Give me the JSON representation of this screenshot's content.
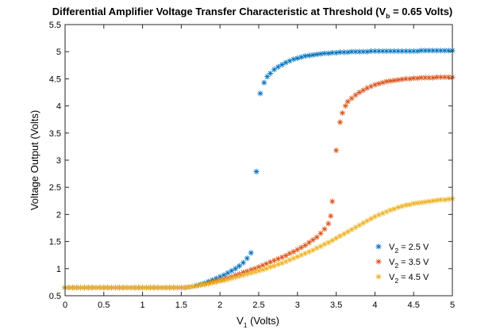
{
  "chart_data": {
    "type": "scatter",
    "title": {
      "main": "Differential Amplifier Voltage Transfer Characteristic at Threshold (V",
      "sub": "b",
      "tail": " = 0.65 Volts)"
    },
    "xlabel": {
      "main": "V",
      "sub": "1",
      "tail": " (Volts)"
    },
    "ylabel": "Voltage Output (Volts)",
    "xlim": [
      0,
      5
    ],
    "ylim": [
      0.5,
      5.5
    ],
    "xticks": [
      "0",
      "0.5",
      "1",
      "1.5",
      "2",
      "2.5",
      "3",
      "3.5",
      "4",
      "4.5",
      "5"
    ],
    "yticks": [
      "0.5",
      "1",
      "1.5",
      "2",
      "2.5",
      "3",
      "3.5",
      "4",
      "4.5",
      "5",
      "5.5"
    ],
    "marker": "*",
    "legend_position": "lower-right",
    "series": [
      {
        "name": {
          "main": "V",
          "sub": "2",
          "tail": " = 2.5 V"
        },
        "color": "#0072BD",
        "points": [
          [
            0.0,
            0.65
          ],
          [
            0.05,
            0.65
          ],
          [
            0.1,
            0.65
          ],
          [
            0.15,
            0.65
          ],
          [
            0.2,
            0.65
          ],
          [
            0.25,
            0.65
          ],
          [
            0.3,
            0.65
          ],
          [
            0.35,
            0.65
          ],
          [
            0.4,
            0.65
          ],
          [
            0.45,
            0.65
          ],
          [
            0.5,
            0.65
          ],
          [
            0.55,
            0.65
          ],
          [
            0.6,
            0.65
          ],
          [
            0.65,
            0.65
          ],
          [
            0.7,
            0.65
          ],
          [
            0.75,
            0.65
          ],
          [
            0.8,
            0.65
          ],
          [
            0.85,
            0.65
          ],
          [
            0.9,
            0.65
          ],
          [
            0.95,
            0.65
          ],
          [
            1.0,
            0.65
          ],
          [
            1.05,
            0.65
          ],
          [
            1.1,
            0.65
          ],
          [
            1.15,
            0.65
          ],
          [
            1.2,
            0.65
          ],
          [
            1.25,
            0.65
          ],
          [
            1.3,
            0.65
          ],
          [
            1.35,
            0.65
          ],
          [
            1.4,
            0.65
          ],
          [
            1.45,
            0.65
          ],
          [
            1.5,
            0.65
          ],
          [
            1.55,
            0.65
          ],
          [
            1.6,
            0.66
          ],
          [
            1.65,
            0.67
          ],
          [
            1.7,
            0.69
          ],
          [
            1.75,
            0.71
          ],
          [
            1.8,
            0.73
          ],
          [
            1.85,
            0.76
          ],
          [
            1.9,
            0.79
          ],
          [
            1.95,
            0.82
          ],
          [
            2.0,
            0.85
          ],
          [
            2.05,
            0.88
          ],
          [
            2.1,
            0.92
          ],
          [
            2.15,
            0.96
          ],
          [
            2.2,
            1.0
          ],
          [
            2.25,
            1.05
          ],
          [
            2.3,
            1.11
          ],
          [
            2.35,
            1.19
          ],
          [
            2.4,
            1.29
          ],
          [
            2.47,
            2.79
          ],
          [
            2.52,
            4.23
          ],
          [
            2.57,
            4.43
          ],
          [
            2.61,
            4.54
          ],
          [
            2.65,
            4.6
          ],
          [
            2.7,
            4.67
          ],
          [
            2.75,
            4.72
          ],
          [
            2.8,
            4.76
          ],
          [
            2.85,
            4.8
          ],
          [
            2.9,
            4.83
          ],
          [
            2.95,
            4.86
          ],
          [
            3.0,
            4.88
          ],
          [
            3.05,
            4.9
          ],
          [
            3.1,
            4.92
          ],
          [
            3.15,
            4.93
          ],
          [
            3.2,
            4.94
          ],
          [
            3.25,
            4.95
          ],
          [
            3.3,
            4.96
          ],
          [
            3.35,
            4.97
          ],
          [
            3.4,
            4.97
          ],
          [
            3.45,
            4.98
          ],
          [
            3.5,
            4.98
          ],
          [
            3.55,
            4.99
          ],
          [
            3.6,
            4.99
          ],
          [
            3.65,
            4.99
          ],
          [
            3.7,
            5.0
          ],
          [
            3.75,
            5.0
          ],
          [
            3.8,
            5.0
          ],
          [
            3.85,
            5.0
          ],
          [
            3.9,
            5.0
          ],
          [
            3.95,
            5.01
          ],
          [
            4.0,
            5.01
          ],
          [
            4.05,
            5.01
          ],
          [
            4.1,
            5.01
          ],
          [
            4.15,
            5.01
          ],
          [
            4.2,
            5.01
          ],
          [
            4.25,
            5.01
          ],
          [
            4.3,
            5.01
          ],
          [
            4.35,
            5.01
          ],
          [
            4.4,
            5.01
          ],
          [
            4.45,
            5.01
          ],
          [
            4.5,
            5.01
          ],
          [
            4.55,
            5.01
          ],
          [
            4.6,
            5.02
          ],
          [
            4.65,
            5.02
          ],
          [
            4.7,
            5.02
          ],
          [
            4.75,
            5.02
          ],
          [
            4.8,
            5.02
          ],
          [
            4.85,
            5.02
          ],
          [
            4.9,
            5.02
          ],
          [
            4.95,
            5.02
          ],
          [
            5.0,
            5.02
          ]
        ]
      },
      {
        "name": {
          "main": "V",
          "sub": "2",
          "tail": " = 3.5 V"
        },
        "color": "#D95319",
        "points": [
          [
            0.0,
            0.65
          ],
          [
            0.05,
            0.65
          ],
          [
            0.1,
            0.65
          ],
          [
            0.15,
            0.65
          ],
          [
            0.2,
            0.65
          ],
          [
            0.25,
            0.65
          ],
          [
            0.3,
            0.65
          ],
          [
            0.35,
            0.65
          ],
          [
            0.4,
            0.65
          ],
          [
            0.45,
            0.65
          ],
          [
            0.5,
            0.65
          ],
          [
            0.55,
            0.65
          ],
          [
            0.6,
            0.65
          ],
          [
            0.65,
            0.65
          ],
          [
            0.7,
            0.65
          ],
          [
            0.75,
            0.65
          ],
          [
            0.8,
            0.65
          ],
          [
            0.85,
            0.65
          ],
          [
            0.9,
            0.65
          ],
          [
            0.95,
            0.65
          ],
          [
            1.0,
            0.65
          ],
          [
            1.05,
            0.65
          ],
          [
            1.1,
            0.65
          ],
          [
            1.15,
            0.65
          ],
          [
            1.2,
            0.65
          ],
          [
            1.25,
            0.65
          ],
          [
            1.3,
            0.65
          ],
          [
            1.35,
            0.65
          ],
          [
            1.4,
            0.65
          ],
          [
            1.45,
            0.65
          ],
          [
            1.5,
            0.65
          ],
          [
            1.55,
            0.65
          ],
          [
            1.6,
            0.66
          ],
          [
            1.65,
            0.67
          ],
          [
            1.7,
            0.68
          ],
          [
            1.75,
            0.7
          ],
          [
            1.8,
            0.71
          ],
          [
            1.85,
            0.73
          ],
          [
            1.9,
            0.75
          ],
          [
            1.95,
            0.77
          ],
          [
            2.0,
            0.79
          ],
          [
            2.05,
            0.81
          ],
          [
            2.1,
            0.83
          ],
          [
            2.15,
            0.85
          ],
          [
            2.2,
            0.88
          ],
          [
            2.25,
            0.9
          ],
          [
            2.3,
            0.93
          ],
          [
            2.35,
            0.95
          ],
          [
            2.4,
            0.98
          ],
          [
            2.45,
            1.0
          ],
          [
            2.5,
            1.03
          ],
          [
            2.55,
            1.06
          ],
          [
            2.6,
            1.09
          ],
          [
            2.65,
            1.12
          ],
          [
            2.7,
            1.15
          ],
          [
            2.75,
            1.18
          ],
          [
            2.8,
            1.21
          ],
          [
            2.85,
            1.24
          ],
          [
            2.9,
            1.28
          ],
          [
            2.95,
            1.31
          ],
          [
            3.0,
            1.35
          ],
          [
            3.05,
            1.39
          ],
          [
            3.1,
            1.43
          ],
          [
            3.15,
            1.48
          ],
          [
            3.2,
            1.53
          ],
          [
            3.25,
            1.58
          ],
          [
            3.3,
            1.65
          ],
          [
            3.35,
            1.73
          ],
          [
            3.4,
            1.83
          ],
          [
            3.43,
            1.97
          ],
          [
            3.45,
            2.24
          ],
          [
            3.5,
            3.18
          ],
          [
            3.55,
            3.7
          ],
          [
            3.58,
            3.87
          ],
          [
            3.62,
            4.0
          ],
          [
            3.65,
            4.08
          ],
          [
            3.7,
            4.14
          ],
          [
            3.75,
            4.2
          ],
          [
            3.8,
            4.25
          ],
          [
            3.85,
            4.29
          ],
          [
            3.9,
            4.33
          ],
          [
            3.95,
            4.36
          ],
          [
            4.0,
            4.39
          ],
          [
            4.05,
            4.41
          ],
          [
            4.1,
            4.43
          ],
          [
            4.15,
            4.45
          ],
          [
            4.2,
            4.46
          ],
          [
            4.25,
            4.47
          ],
          [
            4.3,
            4.48
          ],
          [
            4.35,
            4.49
          ],
          [
            4.4,
            4.5
          ],
          [
            4.45,
            4.5
          ],
          [
            4.5,
            4.51
          ],
          [
            4.55,
            4.51
          ],
          [
            4.6,
            4.52
          ],
          [
            4.65,
            4.52
          ],
          [
            4.7,
            4.52
          ],
          [
            4.75,
            4.52
          ],
          [
            4.8,
            4.53
          ],
          [
            4.85,
            4.53
          ],
          [
            4.9,
            4.53
          ],
          [
            4.95,
            4.53
          ],
          [
            5.0,
            4.53
          ]
        ]
      },
      {
        "name": {
          "main": "V",
          "sub": "2",
          "tail": " = 4.5 V"
        },
        "color": "#EDB120",
        "points": [
          [
            0.0,
            0.65
          ],
          [
            0.05,
            0.65
          ],
          [
            0.1,
            0.65
          ],
          [
            0.15,
            0.65
          ],
          [
            0.2,
            0.65
          ],
          [
            0.25,
            0.65
          ],
          [
            0.3,
            0.65
          ],
          [
            0.35,
            0.65
          ],
          [
            0.4,
            0.65
          ],
          [
            0.45,
            0.65
          ],
          [
            0.5,
            0.65
          ],
          [
            0.55,
            0.65
          ],
          [
            0.6,
            0.65
          ],
          [
            0.65,
            0.65
          ],
          [
            0.7,
            0.65
          ],
          [
            0.75,
            0.65
          ],
          [
            0.8,
            0.65
          ],
          [
            0.85,
            0.65
          ],
          [
            0.9,
            0.65
          ],
          [
            0.95,
            0.65
          ],
          [
            1.0,
            0.65
          ],
          [
            1.05,
            0.65
          ],
          [
            1.1,
            0.65
          ],
          [
            1.15,
            0.65
          ],
          [
            1.2,
            0.65
          ],
          [
            1.25,
            0.65
          ],
          [
            1.3,
            0.65
          ],
          [
            1.35,
            0.65
          ],
          [
            1.4,
            0.65
          ],
          [
            1.45,
            0.65
          ],
          [
            1.5,
            0.65
          ],
          [
            1.55,
            0.65
          ],
          [
            1.6,
            0.66
          ],
          [
            1.65,
            0.67
          ],
          [
            1.7,
            0.68
          ],
          [
            1.75,
            0.7
          ],
          [
            1.8,
            0.71
          ],
          [
            1.85,
            0.72
          ],
          [
            1.9,
            0.74
          ],
          [
            1.95,
            0.75
          ],
          [
            2.0,
            0.77
          ],
          [
            2.05,
            0.78
          ],
          [
            2.1,
            0.8
          ],
          [
            2.15,
            0.82
          ],
          [
            2.2,
            0.84
          ],
          [
            2.25,
            0.86
          ],
          [
            2.3,
            0.88
          ],
          [
            2.35,
            0.9
          ],
          [
            2.4,
            0.92
          ],
          [
            2.45,
            0.94
          ],
          [
            2.5,
            0.96
          ],
          [
            2.55,
            0.98
          ],
          [
            2.6,
            1.0
          ],
          [
            2.65,
            1.03
          ],
          [
            2.7,
            1.05
          ],
          [
            2.75,
            1.08
          ],
          [
            2.8,
            1.1
          ],
          [
            2.85,
            1.13
          ],
          [
            2.9,
            1.16
          ],
          [
            2.95,
            1.19
          ],
          [
            3.0,
            1.22
          ],
          [
            3.05,
            1.25
          ],
          [
            3.1,
            1.28
          ],
          [
            3.15,
            1.31
          ],
          [
            3.2,
            1.34
          ],
          [
            3.25,
            1.38
          ],
          [
            3.3,
            1.41
          ],
          [
            3.35,
            1.45
          ],
          [
            3.4,
            1.48
          ],
          [
            3.45,
            1.52
          ],
          [
            3.5,
            1.56
          ],
          [
            3.55,
            1.6
          ],
          [
            3.6,
            1.64
          ],
          [
            3.65,
            1.68
          ],
          [
            3.7,
            1.72
          ],
          [
            3.75,
            1.76
          ],
          [
            3.8,
            1.8
          ],
          [
            3.85,
            1.84
          ],
          [
            3.9,
            1.88
          ],
          [
            3.95,
            1.92
          ],
          [
            4.0,
            1.96
          ],
          [
            4.05,
            1.99
          ],
          [
            4.1,
            2.02
          ],
          [
            4.15,
            2.05
          ],
          [
            4.2,
            2.08
          ],
          [
            4.25,
            2.1
          ],
          [
            4.3,
            2.13
          ],
          [
            4.35,
            2.15
          ],
          [
            4.4,
            2.17
          ],
          [
            4.45,
            2.18
          ],
          [
            4.5,
            2.2
          ],
          [
            4.55,
            2.21
          ],
          [
            4.6,
            2.22
          ],
          [
            4.65,
            2.23
          ],
          [
            4.7,
            2.24
          ],
          [
            4.75,
            2.25
          ],
          [
            4.8,
            2.26
          ],
          [
            4.85,
            2.27
          ],
          [
            4.9,
            2.27
          ],
          [
            4.95,
            2.28
          ],
          [
            5.0,
            2.29
          ]
        ]
      }
    ]
  }
}
